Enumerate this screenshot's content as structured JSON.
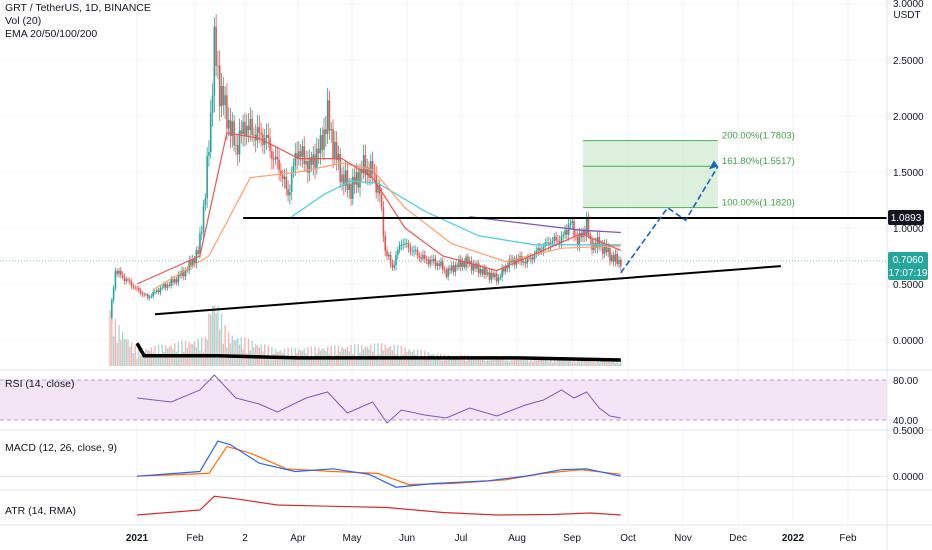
{
  "legend": {
    "symbol": "GRT / TetherUS, 1D, BINANCE",
    "volume": "Vol (20)",
    "ema": "EMA 20/50/100/200",
    "rsi": "RSI (14, close)",
    "macd": "MACD (12, 26, close, 9)",
    "atr": "ATR (14, RMA)"
  },
  "price_axis": {
    "currency": "USDT",
    "ticks": [
      "3.0000",
      "2.5000",
      "2.0000",
      "1.5000",
      "1.0000",
      "0.5000",
      "0.0000"
    ]
  },
  "rsi_axis": {
    "ticks": [
      "80.00",
      "40.00"
    ]
  },
  "macd_axis": {
    "ticks": [
      "0.5000",
      "0.0000"
    ]
  },
  "date_axis": {
    "ticks": [
      "2021",
      "Feb",
      "2",
      "Apr",
      "May",
      "Jun",
      "Jul",
      "Aug",
      "Sep",
      "Oct",
      "Nov",
      "Dec",
      "2022",
      "Feb"
    ]
  },
  "badges": {
    "resistance": "1.0893",
    "last_price": "0.7060",
    "countdown": "17:07:19"
  },
  "fib_levels": [
    {
      "label": "200.00%(1.7803)",
      "value": 1.7803
    },
    {
      "label": "161.80%(1.5517)",
      "value": 1.5517
    },
    {
      "label": "100.00%(1.1820)",
      "value": 1.182
    }
  ],
  "colors": {
    "up": "#26a69a",
    "down": "#ef5350",
    "ema20": "#ef5350",
    "ema50": "#ff9f6b",
    "ema100": "#4dd0e1",
    "ema200": "#7e57c2",
    "rsi": "#7e57c2",
    "rsi_band": "#f3e5f5",
    "macd": "#2962ff",
    "signal": "#ff6d00",
    "atr": "#d32f2f",
    "fib_fill": "#cfead0",
    "projection": "#1565c0"
  },
  "chart_data": [
    {
      "type": "candlestick",
      "title": "GRT / TetherUS, 1D, BINANCE",
      "ylabel": "USDT",
      "ylim": [
        0,
        3.0
      ],
      "price_path": [
        [
          "2020-12-17",
          0.2
        ],
        [
          "2020-12-20",
          0.62
        ],
        [
          "2020-12-25",
          0.55
        ],
        [
          "2021-01-01",
          0.45
        ],
        [
          "2021-01-07",
          0.38
        ],
        [
          "2021-01-14",
          0.46
        ],
        [
          "2021-01-21",
          0.52
        ],
        [
          "2021-01-28",
          0.62
        ],
        [
          "2021-02-04",
          0.78
        ],
        [
          "2021-02-08",
          1.3
        ],
        [
          "2021-02-11",
          2.0
        ],
        [
          "2021-02-13",
          2.62
        ],
        [
          "2021-02-16",
          2.25
        ],
        [
          "2021-02-20",
          2.0
        ],
        [
          "2021-02-25",
          1.72
        ],
        [
          "2021-03-02",
          1.92
        ],
        [
          "2021-03-07",
          1.85
        ],
        [
          "2021-03-14",
          1.8
        ],
        [
          "2021-03-18",
          1.62
        ],
        [
          "2021-03-21",
          1.55
        ],
        [
          "2021-03-26",
          1.3
        ],
        [
          "2021-03-31",
          1.7
        ],
        [
          "2021-04-07",
          1.55
        ],
        [
          "2021-04-13",
          1.72
        ],
        [
          "2021-04-17",
          2.0
        ],
        [
          "2021-04-20",
          1.75
        ],
        [
          "2021-04-25",
          1.45
        ],
        [
          "2021-04-30",
          1.35
        ],
        [
          "2021-05-07",
          1.55
        ],
        [
          "2021-05-12",
          1.5
        ],
        [
          "2021-05-16",
          1.3
        ],
        [
          "2021-05-19",
          0.8
        ],
        [
          "2021-05-23",
          0.65
        ],
        [
          "2021-05-28",
          0.88
        ],
        [
          "2021-06-03",
          0.8
        ],
        [
          "2021-06-10",
          0.72
        ],
        [
          "2021-06-18",
          0.68
        ],
        [
          "2021-06-22",
          0.6
        ],
        [
          "2021-06-27",
          0.66
        ],
        [
          "2021-07-03",
          0.7
        ],
        [
          "2021-07-09",
          0.64
        ],
        [
          "2021-07-16",
          0.58
        ],
        [
          "2021-07-21",
          0.55
        ],
        [
          "2021-07-26",
          0.68
        ],
        [
          "2021-07-31",
          0.72
        ],
        [
          "2021-08-06",
          0.7
        ],
        [
          "2021-08-12",
          0.8
        ],
        [
          "2021-08-19",
          0.88
        ],
        [
          "2021-08-25",
          0.9
        ],
        [
          "2021-08-30",
          1.05
        ],
        [
          "2021-09-03",
          0.88
        ],
        [
          "2021-09-06",
          0.95
        ],
        [
          "2021-09-08",
          1.05
        ],
        [
          "2021-09-10",
          0.85
        ],
        [
          "2021-09-15",
          0.86
        ],
        [
          "2021-09-20",
          0.78
        ],
        [
          "2021-09-23",
          0.72
        ],
        [
          "2021-09-27",
          0.7
        ]
      ],
      "ema20_path": [
        [
          "2021-01-01",
          0.5
        ],
        [
          "2021-02-05",
          0.75
        ],
        [
          "2021-02-20",
          1.85
        ],
        [
          "2021-03-10",
          1.8
        ],
        [
          "2021-04-01",
          1.62
        ],
        [
          "2021-04-25",
          1.62
        ],
        [
          "2021-05-12",
          1.45
        ],
        [
          "2021-05-30",
          1.0
        ],
        [
          "2021-06-20",
          0.75
        ],
        [
          "2021-07-20",
          0.62
        ],
        [
          "2021-08-15",
          0.8
        ],
        [
          "2021-09-05",
          0.95
        ],
        [
          "2021-09-27",
          0.8
        ]
      ],
      "ema50_path": [
        [
          "2021-01-10",
          0.45
        ],
        [
          "2021-02-10",
          0.75
        ],
        [
          "2021-03-05",
          1.45
        ],
        [
          "2021-04-01",
          1.5
        ],
        [
          "2021-04-25",
          1.58
        ],
        [
          "2021-05-12",
          1.52
        ],
        [
          "2021-05-30",
          1.18
        ],
        [
          "2021-06-25",
          0.86
        ],
        [
          "2021-07-25",
          0.7
        ],
        [
          "2021-08-25",
          0.82
        ],
        [
          "2021-09-27",
          0.84
        ]
      ],
      "ema100_path": [
        [
          "2021-03-28",
          1.1
        ],
        [
          "2021-04-15",
          1.3
        ],
        [
          "2021-04-30",
          1.42
        ],
        [
          "2021-05-15",
          1.4
        ],
        [
          "2021-06-10",
          1.15
        ],
        [
          "2021-07-10",
          0.93
        ],
        [
          "2021-08-10",
          0.85
        ],
        [
          "2021-09-10",
          0.85
        ],
        [
          "2021-09-27",
          0.85
        ]
      ],
      "ema200_path": [
        [
          "2021-07-05",
          1.1
        ],
        [
          "2021-08-05",
          1.04
        ],
        [
          "2021-09-05",
          0.98
        ],
        [
          "2021-09-27",
          0.96
        ]
      ],
      "drawings": {
        "horizontal_resistance": [
          [
            "2021-03-01",
            1.0893
          ],
          [
            "2022-03-15",
            1.0893
          ]
        ],
        "rising_trendline": [
          [
            "2021-01-11",
            0.23
          ],
          [
            "2021-12-25",
            0.66
          ]
        ],
        "projection_path": [
          [
            "2021-09-27",
            0.6
          ],
          [
            "2021-10-23",
            1.18
          ],
          [
            "2021-11-02",
            1.07
          ],
          [
            "2021-11-20",
            1.55
          ]
        ],
        "fib_box_dates": [
          "2021-09-06",
          "2021-11-20"
        ]
      },
      "volume_path": [
        [
          "2020-12-17",
          0.15
        ],
        [
          "2020-12-20",
          0.08
        ],
        [
          "2021-01-01",
          0.03
        ],
        [
          "2021-02-08",
          0.05
        ],
        [
          "2021-02-12",
          0.14
        ],
        [
          "2021-02-20",
          0.06
        ],
        [
          "2021-03-20",
          0.03
        ],
        [
          "2021-05-19",
          0.04
        ],
        [
          "2021-06-20",
          0.02
        ],
        [
          "2021-09-27",
          0.01
        ]
      ],
      "vol_ma_path": [
        [
          "2021-01-01",
          0.04
        ],
        [
          "2021-01-05",
          0.01
        ],
        [
          "2021-02-15",
          0.01
        ],
        [
          "2021-04-01",
          0.005
        ],
        [
          "2021-08-01",
          0.005
        ],
        [
          "2021-09-27",
          0.0
        ]
      ]
    },
    {
      "type": "line",
      "title": "RSI (14, close)",
      "ylim": [
        30,
        90
      ],
      "band": [
        40,
        80
      ],
      "points": [
        [
          "2021-01-01",
          62
        ],
        [
          "2021-01-20",
          58
        ],
        [
          "2021-02-05",
          70
        ],
        [
          "2021-02-13",
          85
        ],
        [
          "2021-02-25",
          62
        ],
        [
          "2021-03-10",
          56
        ],
        [
          "2021-03-20",
          48
        ],
        [
          "2021-04-05",
          62
        ],
        [
          "2021-04-17",
          68
        ],
        [
          "2021-04-28",
          47
        ],
        [
          "2021-05-12",
          58
        ],
        [
          "2021-05-20",
          37
        ],
        [
          "2021-05-28",
          50
        ],
        [
          "2021-06-10",
          45
        ],
        [
          "2021-06-22",
          42
        ],
        [
          "2021-07-05",
          52
        ],
        [
          "2021-07-20",
          44
        ],
        [
          "2021-08-05",
          55
        ],
        [
          "2021-08-15",
          60
        ],
        [
          "2021-08-25",
          70
        ],
        [
          "2021-09-01",
          62
        ],
        [
          "2021-09-08",
          68
        ],
        [
          "2021-09-15",
          52
        ],
        [
          "2021-09-21",
          44
        ],
        [
          "2021-09-27",
          42
        ]
      ]
    },
    {
      "type": "line",
      "title": "MACD (12, 26, close, 9)",
      "ylim": [
        -0.15,
        0.5
      ],
      "macd": [
        [
          "2021-01-01",
          0.0
        ],
        [
          "2021-02-05",
          0.05
        ],
        [
          "2021-02-15",
          0.38
        ],
        [
          "2021-02-22",
          0.34
        ],
        [
          "2021-03-10",
          0.14
        ],
        [
          "2021-03-30",
          0.05
        ],
        [
          "2021-04-20",
          0.08
        ],
        [
          "2021-05-10",
          0.02
        ],
        [
          "2021-05-25",
          -0.12
        ],
        [
          "2021-06-15",
          -0.08
        ],
        [
          "2021-07-15",
          -0.05
        ],
        [
          "2021-08-05",
          0.0
        ],
        [
          "2021-08-25",
          0.07
        ],
        [
          "2021-09-08",
          0.08
        ],
        [
          "2021-09-27",
          0.0
        ]
      ],
      "signal": [
        [
          "2021-01-01",
          0.0
        ],
        [
          "2021-02-10",
          0.03
        ],
        [
          "2021-02-20",
          0.32
        ],
        [
          "2021-03-05",
          0.25
        ],
        [
          "2021-03-25",
          0.08
        ],
        [
          "2021-04-20",
          0.05
        ],
        [
          "2021-05-15",
          0.03
        ],
        [
          "2021-06-01",
          -0.09
        ],
        [
          "2021-06-25",
          -0.08
        ],
        [
          "2021-07-25",
          -0.04
        ],
        [
          "2021-08-15",
          0.03
        ],
        [
          "2021-09-05",
          0.07
        ],
        [
          "2021-09-27",
          0.02
        ]
      ]
    },
    {
      "type": "line",
      "title": "ATR (14, RMA)",
      "points": [
        [
          "2021-01-01",
          0.2
        ],
        [
          "2021-02-05",
          0.4
        ],
        [
          "2021-02-13",
          0.95
        ],
        [
          "2021-02-25",
          0.85
        ],
        [
          "2021-03-20",
          0.6
        ],
        [
          "2021-04-20",
          0.55
        ],
        [
          "2021-05-20",
          0.5
        ],
        [
          "2021-06-20",
          0.3
        ],
        [
          "2021-07-20",
          0.2
        ],
        [
          "2021-08-20",
          0.22
        ],
        [
          "2021-09-10",
          0.28
        ],
        [
          "2021-09-27",
          0.2
        ]
      ]
    }
  ]
}
